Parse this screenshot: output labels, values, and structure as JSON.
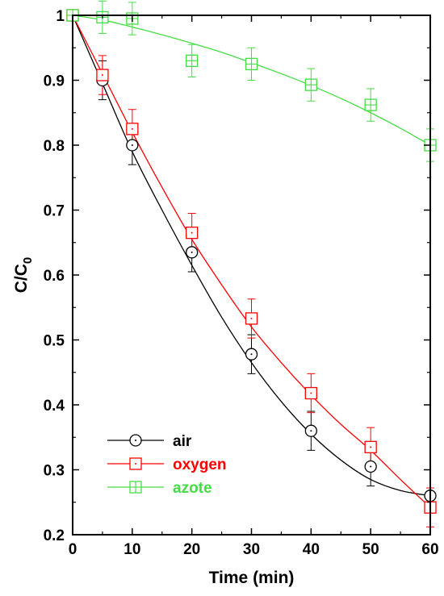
{
  "chart_data": {
    "type": "line",
    "xlabel": "Time (min)",
    "ylabel": "C/C",
    "ylabel_subscript": "0",
    "xlim": [
      0,
      60
    ],
    "ylim": [
      0.2,
      1.0
    ],
    "xticks": [
      0,
      10,
      20,
      30,
      40,
      50,
      60
    ],
    "yticks": [
      0.2,
      0.3,
      0.4,
      0.5,
      0.6,
      0.7,
      0.8,
      0.9,
      1.0
    ],
    "ytick_labels": [
      "0.2",
      "0.3",
      "0.4",
      "0.5",
      "0.6",
      "0.7",
      "0.8",
      "0.9",
      "1"
    ],
    "grid": false,
    "legend_position": "bottom-left",
    "series": [
      {
        "name": "air",
        "color": "#000000",
        "marker": "circle-dot",
        "x": [
          0,
          5,
          10,
          20,
          30,
          40,
          50,
          60
        ],
        "y": [
          1.0,
          0.9,
          0.8,
          0.635,
          0.478,
          0.36,
          0.305,
          0.26
        ],
        "err": [
          0,
          0.03,
          0.03,
          0.03,
          0.03,
          0.03,
          0.03,
          0.0
        ],
        "fit": [
          [
            0,
            1.0
          ],
          [
            5,
            0.895
          ],
          [
            10,
            0.79
          ],
          [
            15,
            0.7
          ],
          [
            20,
            0.615
          ],
          [
            25,
            0.535
          ],
          [
            30,
            0.465
          ],
          [
            35,
            0.405
          ],
          [
            40,
            0.355
          ],
          [
            45,
            0.315
          ],
          [
            50,
            0.285
          ],
          [
            55,
            0.268
          ],
          [
            60,
            0.26
          ]
        ]
      },
      {
        "name": "oxygen",
        "color": "#ff0000",
        "marker": "square-dot",
        "x": [
          0,
          5,
          10,
          20,
          30,
          40,
          50,
          60
        ],
        "y": [
          1.0,
          0.908,
          0.825,
          0.665,
          0.533,
          0.418,
          0.335,
          0.242
        ],
        "err": [
          0,
          0.03,
          0.03,
          0.03,
          0.03,
          0.03,
          0.03,
          0.03
        ],
        "fit": [
          [
            0,
            1.0
          ],
          [
            5,
            0.91
          ],
          [
            10,
            0.82
          ],
          [
            15,
            0.735
          ],
          [
            20,
            0.655
          ],
          [
            25,
            0.585
          ],
          [
            30,
            0.52
          ],
          [
            35,
            0.465
          ],
          [
            40,
            0.415
          ],
          [
            45,
            0.37
          ],
          [
            50,
            0.33
          ],
          [
            55,
            0.285
          ],
          [
            60,
            0.242
          ]
        ]
      },
      {
        "name": "azote",
        "color": "#44dd44",
        "marker": "square-cross",
        "x": [
          0,
          5,
          10,
          20,
          30,
          40,
          50,
          60
        ],
        "y": [
          1.0,
          0.997,
          0.995,
          0.93,
          0.925,
          0.893,
          0.862,
          0.8
        ],
        "err": [
          0,
          0.025,
          0.025,
          0.025,
          0.025,
          0.025,
          0.025,
          0.025
        ],
        "fit": [
          [
            0,
            1.0
          ],
          [
            5,
            0.993
          ],
          [
            10,
            0.982
          ],
          [
            15,
            0.97
          ],
          [
            20,
            0.957
          ],
          [
            25,
            0.943
          ],
          [
            30,
            0.927
          ],
          [
            35,
            0.91
          ],
          [
            40,
            0.892
          ],
          [
            45,
            0.872
          ],
          [
            50,
            0.85
          ],
          [
            55,
            0.826
          ],
          [
            60,
            0.8
          ]
        ]
      }
    ]
  }
}
